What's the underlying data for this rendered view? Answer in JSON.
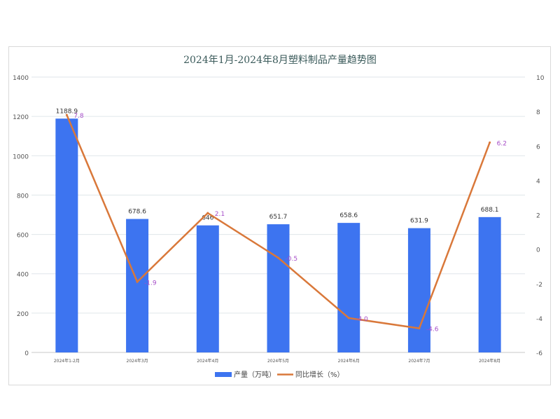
{
  "chart_data": {
    "type": "bar+line",
    "title": "2024年1月-2024年8月塑料制品产量趋势图",
    "categories": [
      "2024年1-2月",
      "2024年3月",
      "2024年4月",
      "2024年5月",
      "2024年6月",
      "2024年7月",
      "2024年8月"
    ],
    "series": [
      {
        "name": "产量（万吨）",
        "type": "bar",
        "axis": "left",
        "color": "#3d74f0",
        "values": [
          1188.9,
          678.6,
          646,
          651.7,
          658.6,
          631.9,
          688.1
        ]
      },
      {
        "name": "同比增长（%）",
        "type": "line",
        "axis": "right",
        "color": "#d9783a",
        "label_color": "#a64dc8",
        "values": [
          7.8,
          -1.9,
          2.1,
          -0.5,
          -4.0,
          -4.6,
          6.2
        ]
      }
    ],
    "y_left": {
      "range": [
        0,
        1400
      ],
      "ticks": [
        0,
        200,
        400,
        600,
        800,
        1000,
        1200,
        1400
      ]
    },
    "y_right": {
      "range": [
        -6,
        10
      ],
      "ticks": [
        -6,
        -4,
        -2,
        0,
        2,
        4,
        6,
        8,
        10
      ]
    },
    "grid": true,
    "legend": "bottom"
  }
}
